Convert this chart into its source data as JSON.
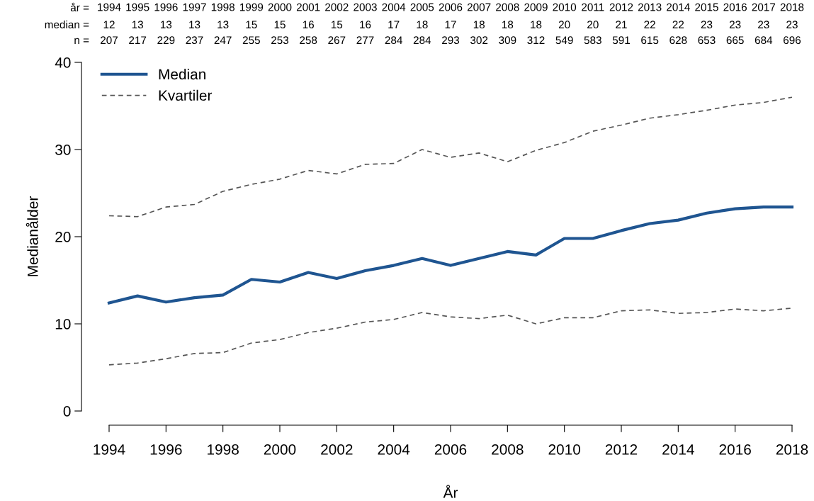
{
  "chart_data": {
    "type": "line",
    "xlabel": "År",
    "ylabel": "Medianålder",
    "x": [
      1994,
      1995,
      1996,
      1997,
      1998,
      1999,
      2000,
      2001,
      2002,
      2003,
      2004,
      2005,
      2006,
      2007,
      2008,
      2009,
      2010,
      2011,
      2012,
      2013,
      2014,
      2015,
      2016,
      2017,
      2018
    ],
    "series": [
      {
        "name": "Median",
        "color": "#1f5591",
        "line_style": "solid",
        "values": [
          12.4,
          13.2,
          12.5,
          13.0,
          13.3,
          15.1,
          14.8,
          15.9,
          15.2,
          16.1,
          16.7,
          17.5,
          16.7,
          17.5,
          18.3,
          17.9,
          19.8,
          19.8,
          20.7,
          21.5,
          21.9,
          22.7,
          23.2,
          23.4,
          23.4
        ]
      },
      {
        "name": "Kvartiler",
        "color": "#555555",
        "line_style": "dashed",
        "values": [
          22.4,
          22.3,
          23.4,
          23.7,
          25.2,
          26.0,
          26.6,
          27.6,
          27.2,
          28.3,
          28.4,
          30.0,
          29.1,
          29.6,
          28.6,
          29.9,
          30.8,
          32.1,
          32.8,
          33.6,
          34.0,
          34.5,
          35.1,
          35.4,
          36.0
        ]
      },
      {
        "color": "#555555",
        "line_style": "dashed",
        "values": [
          5.3,
          5.5,
          6.0,
          6.6,
          6.7,
          7.8,
          8.2,
          9.0,
          9.5,
          10.2,
          10.5,
          11.3,
          10.8,
          10.6,
          11.0,
          10.0,
          10.7,
          10.7,
          11.5,
          11.6,
          11.2,
          11.3,
          11.7,
          11.5,
          11.8
        ]
      }
    ],
    "xlim": [
      1994,
      2018
    ],
    "xticks": [
      1994,
      1996,
      1998,
      2000,
      2002,
      2004,
      2006,
      2008,
      2010,
      2012,
      2014,
      2016,
      2018
    ],
    "ylim": [
      0,
      40
    ],
    "yticks": [
      0,
      10,
      20,
      30,
      40
    ],
    "x2lim": [
      1994,
      2018
    ],
    "x2ticks": [
      1994,
      1995,
      1996,
      1997,
      1998,
      1999,
      2000,
      2001,
      2002,
      2003,
      2004,
      2005,
      2006,
      2007,
      2008,
      2009,
      2010,
      2011,
      2012,
      2013,
      2014,
      2015,
      2016,
      2017,
      2018
    ],
    "annotations": [
      "år =",
      "median =",
      "n =",
      "12",
      "13",
      "13",
      "13",
      "13",
      "15",
      "15",
      "16",
      "15",
      "16",
      "17",
      "18",
      "17",
      "18",
      "18",
      "18",
      "20",
      "20",
      "21",
      "22",
      "22",
      "23",
      "23",
      "23",
      "23",
      "207",
      "217",
      "229",
      "237",
      "247",
      "255",
      "253",
      "258",
      "267",
      "277",
      "284",
      "284",
      "293",
      "302",
      "309",
      "312",
      "549",
      "583",
      "591",
      "615",
      "628",
      "653",
      "665",
      "684",
      "696"
    ],
    "marker": "none",
    "grid": false,
    "legend": "top left"
  }
}
